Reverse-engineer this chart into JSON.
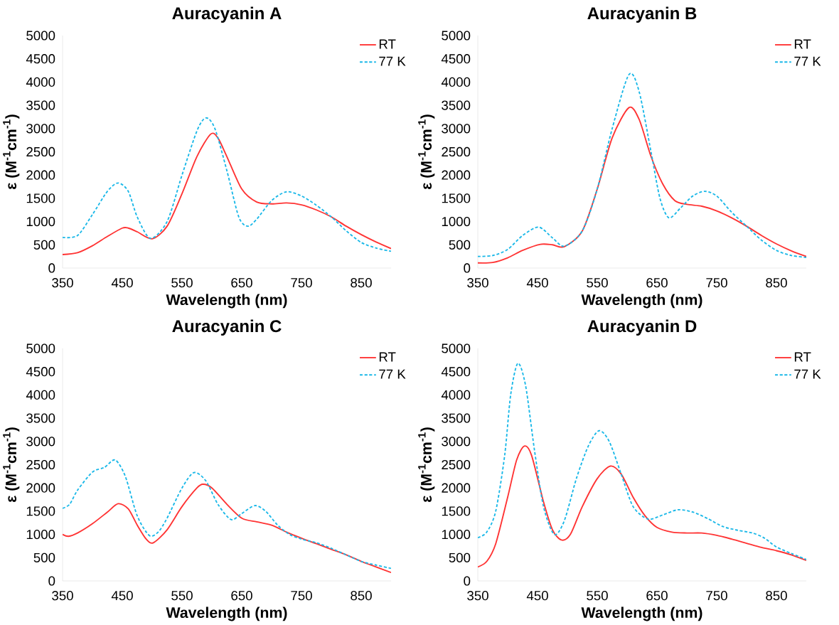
{
  "chart_data": [
    {
      "type": "line",
      "title": "Auracyanin A",
      "xlabel": "Wavelength (nm)",
      "ylabel": "ε (M$^{-1}$cm$^{-1}$)",
      "xlim": [
        350,
        900
      ],
      "xticks": [
        350,
        450,
        550,
        650,
        750,
        850
      ],
      "ylim": [
        0,
        5000
      ],
      "yticks": [
        0,
        500,
        1000,
        1500,
        2000,
        2500,
        3000,
        3500,
        4000,
        4500,
        5000
      ],
      "legend": "top right",
      "grid": false,
      "series": [
        {
          "name": "RT",
          "color": "#ff3333",
          "line_style": "solid",
          "x": [
            350,
            375,
            400,
            425,
            450,
            460,
            475,
            500,
            525,
            550,
            575,
            598,
            610,
            625,
            650,
            675,
            700,
            725,
            750,
            775,
            800,
            825,
            850,
            875,
            900
          ],
          "values": [
            290,
            330,
            480,
            680,
            860,
            860,
            780,
            630,
            900,
            1600,
            2400,
            2880,
            2800,
            2400,
            1700,
            1420,
            1380,
            1400,
            1360,
            1250,
            1100,
            900,
            720,
            560,
            420
          ]
        },
        {
          "name": "77 K",
          "color": "#1ab8e8",
          "line_style": "dashed",
          "x": [
            350,
            375,
            400,
            425,
            443,
            460,
            475,
            497,
            525,
            550,
            575,
            590,
            605,
            625,
            645,
            660,
            675,
            700,
            725,
            750,
            775,
            800,
            825,
            850,
            875,
            900
          ],
          "values": [
            660,
            700,
            1150,
            1650,
            1830,
            1650,
            1100,
            640,
            1000,
            2000,
            2950,
            3230,
            3000,
            2100,
            1100,
            900,
            1050,
            1450,
            1640,
            1550,
            1350,
            1100,
            800,
            550,
            430,
            360
          ]
        }
      ]
    },
    {
      "type": "line",
      "title": "Auracyanin B",
      "xlabel": "Wavelength (nm)",
      "ylabel": "ε (M$^{-1}$cm$^{-1}$)",
      "xlim": [
        350,
        900
      ],
      "xticks": [
        350,
        450,
        550,
        650,
        750,
        850
      ],
      "ylim": [
        0,
        5000
      ],
      "yticks": [
        0,
        500,
        1000,
        1500,
        2000,
        2500,
        3000,
        3500,
        4000,
        4500,
        5000
      ],
      "legend": "top right",
      "grid": false,
      "series": [
        {
          "name": "RT",
          "color": "#ff3333",
          "line_style": "solid",
          "x": [
            350,
            375,
            400,
            425,
            455,
            475,
            495,
            525,
            550,
            575,
            603,
            620,
            640,
            660,
            680,
            700,
            725,
            750,
            775,
            800,
            825,
            850,
            875,
            900
          ],
          "values": [
            110,
            120,
            220,
            380,
            510,
            500,
            460,
            800,
            1700,
            2800,
            3450,
            3200,
            2400,
            1800,
            1450,
            1370,
            1330,
            1230,
            1080,
            900,
            700,
            520,
            370,
            250
          ]
        },
        {
          "name": "77 K",
          "color": "#1ab8e8",
          "line_style": "dashed",
          "x": [
            350,
            375,
            400,
            425,
            452,
            475,
            495,
            525,
            550,
            575,
            603,
            620,
            640,
            655,
            670,
            690,
            710,
            730,
            750,
            775,
            800,
            825,
            850,
            875,
            900
          ],
          "values": [
            250,
            270,
            400,
            700,
            880,
            650,
            470,
            800,
            1700,
            3000,
            4160,
            3800,
            2500,
            1500,
            1080,
            1300,
            1550,
            1650,
            1550,
            1200,
            900,
            600,
            380,
            270,
            230
          ]
        }
      ]
    },
    {
      "type": "line",
      "title": "Auracyanin C",
      "xlabel": "Wavelength (nm)",
      "ylabel": "ε (M$^{-1}$cm$^{-1}$)",
      "xlim": [
        350,
        900
      ],
      "xticks": [
        350,
        450,
        550,
        650,
        750,
        850
      ],
      "ylim": [
        0,
        5000
      ],
      "yticks": [
        0,
        500,
        1000,
        1500,
        2000,
        2500,
        3000,
        3500,
        4000,
        4500,
        5000
      ],
      "legend": "top right",
      "grid": false,
      "series": [
        {
          "name": "RT",
          "color": "#ff3333",
          "line_style": "solid",
          "x": [
            350,
            360,
            375,
            400,
            425,
            443,
            460,
            475,
            490,
            502,
            525,
            550,
            575,
            585,
            600,
            625,
            650,
            675,
            700,
            725,
            750,
            775,
            800,
            825,
            850,
            875,
            900
          ],
          "values": [
            1000,
            960,
            1030,
            1230,
            1480,
            1660,
            1550,
            1200,
            900,
            820,
            1100,
            1600,
            2000,
            2080,
            2000,
            1650,
            1350,
            1270,
            1200,
            1050,
            920,
            800,
            680,
            560,
            420,
            300,
            180
          ]
        },
        {
          "name": "77 K",
          "color": "#1ab8e8",
          "line_style": "dashed",
          "x": [
            350,
            362,
            375,
            400,
            420,
            438,
            455,
            475,
            495,
            510,
            525,
            550,
            570,
            590,
            610,
            632,
            650,
            672,
            690,
            710,
            730,
            750,
            775,
            800,
            825,
            850,
            875,
            900
          ],
          "values": [
            1560,
            1650,
            1950,
            2340,
            2440,
            2600,
            2250,
            1400,
            980,
            1050,
            1350,
            2000,
            2330,
            2150,
            1650,
            1320,
            1450,
            1620,
            1500,
            1200,
            1000,
            900,
            820,
            700,
            560,
            420,
            340,
            270
          ]
        }
      ]
    },
    {
      "type": "line",
      "title": "Auracyanin D",
      "xlabel": "Wavelength (nm)",
      "ylabel": "ε (M$^{-1}$cm$^{-1}$)",
      "xlim": [
        350,
        900
      ],
      "xticks": [
        350,
        450,
        550,
        650,
        750,
        850
      ],
      "ylim": [
        0,
        5000
      ],
      "yticks": [
        0,
        500,
        1000,
        1500,
        2000,
        2500,
        3000,
        3500,
        4000,
        4500,
        5000
      ],
      "legend": "top right",
      "grid": false,
      "series": [
        {
          "name": "RT",
          "color": "#ff3333",
          "line_style": "solid",
          "x": [
            350,
            365,
            380,
            400,
            415,
            428,
            440,
            460,
            475,
            490,
            505,
            525,
            550,
            572,
            590,
            610,
            630,
            650,
            675,
            700,
            725,
            750,
            775,
            800,
            825,
            850,
            875,
            900
          ],
          "values": [
            300,
            420,
            800,
            1800,
            2600,
            2900,
            2700,
            1700,
            1100,
            880,
            1000,
            1600,
            2200,
            2470,
            2300,
            1800,
            1400,
            1150,
            1050,
            1030,
            1030,
            980,
            900,
            810,
            720,
            650,
            560,
            440
          ]
        },
        {
          "name": "77 K",
          "color": "#1ab8e8",
          "line_style": "dashed",
          "x": [
            350,
            365,
            380,
            395,
            405,
            417,
            430,
            445,
            460,
            478,
            495,
            515,
            535,
            553,
            570,
            590,
            610,
            635,
            660,
            685,
            710,
            735,
            760,
            785,
            810,
            830,
            850,
            875,
            900
          ],
          "values": [
            930,
            1050,
            1500,
            2700,
            4000,
            4680,
            4200,
            2800,
            1600,
            1000,
            1300,
            2200,
            2900,
            3230,
            3000,
            2300,
            1600,
            1330,
            1420,
            1530,
            1480,
            1340,
            1170,
            1090,
            1030,
            920,
            730,
            590,
            460
          ]
        }
      ]
    }
  ]
}
